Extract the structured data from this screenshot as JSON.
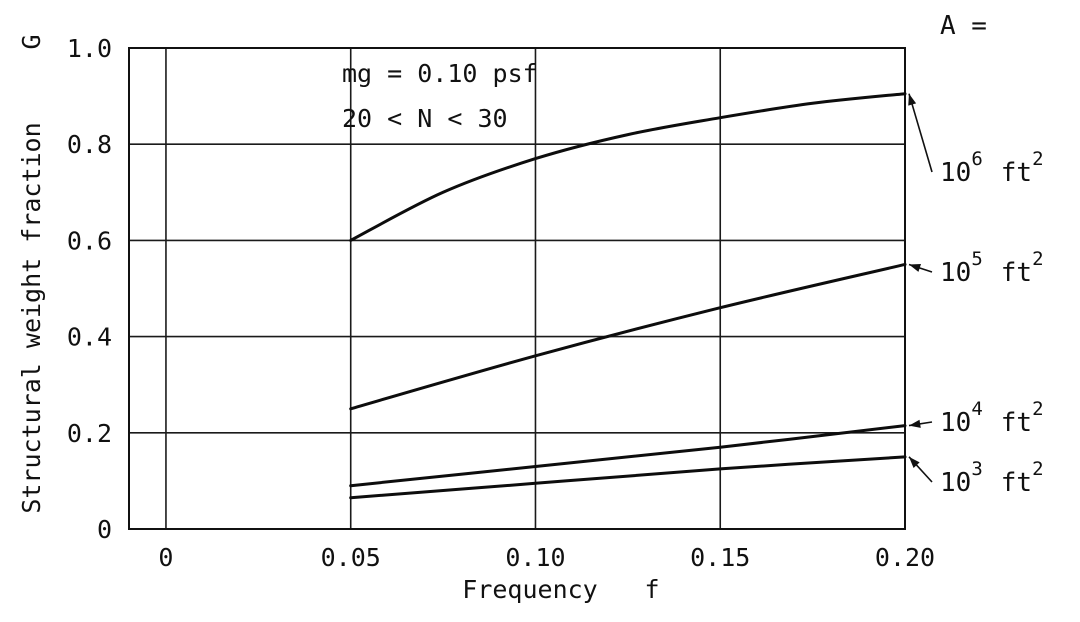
{
  "chart_data": {
    "type": "line",
    "xlabel": "Frequency",
    "xlabel_symbol": "f",
    "ylabel": "Structural weight fraction",
    "ylabel_symbol": "G",
    "xlim": [
      -0.01,
      0.2
    ],
    "ylim": [
      0,
      1.0
    ],
    "x_ticks": [
      0,
      0.05,
      0.1,
      0.15,
      0.2
    ],
    "x_tick_labels": [
      "0",
      "0.05",
      "0.10",
      "0.15",
      "0.20"
    ],
    "y_ticks": [
      0,
      0.2,
      0.4,
      0.6,
      0.8,
      1.0
    ],
    "y_tick_labels": [
      "0",
      "0.2",
      "0.4",
      "0.6",
      "0.8",
      "1.0"
    ],
    "grid": true,
    "annotations": [
      "mg = 0.10 psf",
      "20 < N < 30"
    ],
    "series_header": "A =",
    "series": [
      {
        "name": "10^6 ft^2",
        "label_base": "10",
        "label_exp": "6",
        "label_unit": "ft",
        "label_unit_exp": "2",
        "x": [
          0.05,
          0.075,
          0.1,
          0.125,
          0.15,
          0.175,
          0.2
        ],
        "y": [
          0.6,
          0.7,
          0.77,
          0.82,
          0.855,
          0.885,
          0.905
        ]
      },
      {
        "name": "10^5 ft^2",
        "label_base": "10",
        "label_exp": "5",
        "label_unit": "ft",
        "label_unit_exp": "2",
        "x": [
          0.05,
          0.1,
          0.15,
          0.2
        ],
        "y": [
          0.25,
          0.36,
          0.46,
          0.55
        ]
      },
      {
        "name": "10^4 ft^2",
        "label_base": "10",
        "label_exp": "4",
        "label_unit": "ft",
        "label_unit_exp": "2",
        "x": [
          0.05,
          0.1,
          0.15,
          0.2
        ],
        "y": [
          0.09,
          0.13,
          0.17,
          0.215
        ]
      },
      {
        "name": "10^3 ft^2",
        "label_base": "10",
        "label_exp": "3",
        "label_unit": "ft",
        "label_unit_exp": "2",
        "x": [
          0.05,
          0.1,
          0.15,
          0.2
        ],
        "y": [
          0.065,
          0.095,
          0.125,
          0.15
        ]
      }
    ]
  }
}
